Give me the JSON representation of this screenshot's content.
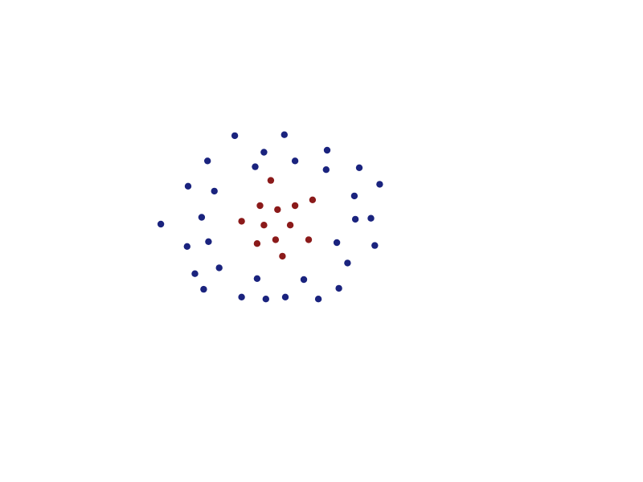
{
  "chart_data": {
    "type": "scatter",
    "grid": false,
    "legend": "none",
    "axes_visible": false,
    "xlim": [
      -1.5,
      1.5
    ],
    "ylim": [
      -1.2,
      1.2
    ],
    "series": [
      {
        "color": "#1a237e",
        "points": [
          [
            -0.52,
            0.91
          ],
          [
            -0.01,
            0.92
          ],
          [
            0.43,
            0.76
          ],
          [
            -0.22,
            0.74
          ],
          [
            -0.8,
            0.65
          ],
          [
            0.1,
            0.65
          ],
          [
            0.76,
            0.58
          ],
          [
            -0.31,
            0.59
          ],
          [
            0.42,
            0.56
          ],
          [
            -1.0,
            0.39
          ],
          [
            -0.73,
            0.34
          ],
          [
            0.97,
            0.41
          ],
          [
            0.71,
            0.29
          ],
          [
            -0.86,
            0.07
          ],
          [
            0.72,
            0.05
          ],
          [
            0.88,
            0.06
          ],
          [
            -1.28,
            0.0
          ],
          [
            -1.01,
            -0.23
          ],
          [
            -0.79,
            -0.18
          ],
          [
            0.53,
            -0.19
          ],
          [
            0.92,
            -0.22
          ],
          [
            0.64,
            -0.4
          ],
          [
            -0.68,
            -0.45
          ],
          [
            -0.93,
            -0.51
          ],
          [
            -0.29,
            -0.56
          ],
          [
            0.19,
            -0.57
          ],
          [
            -0.84,
            -0.67
          ],
          [
            0.55,
            -0.66
          ],
          [
            -0.45,
            -0.75
          ],
          [
            -0.2,
            -0.77
          ],
          [
            0.0,
            -0.75
          ],
          [
            0.34,
            -0.77
          ]
        ]
      },
      {
        "color": "#8b1a1a",
        "points": [
          [
            -0.15,
            0.45
          ],
          [
            -0.26,
            0.19
          ],
          [
            0.1,
            0.19
          ],
          [
            0.28,
            0.25
          ],
          [
            -0.08,
            0.15
          ],
          [
            -0.45,
            0.03
          ],
          [
            -0.22,
            -0.01
          ],
          [
            0.05,
            -0.01
          ],
          [
            -0.1,
            -0.16
          ],
          [
            0.24,
            -0.16
          ],
          [
            -0.29,
            -0.2
          ],
          [
            -0.03,
            -0.33
          ]
        ]
      }
    ]
  }
}
